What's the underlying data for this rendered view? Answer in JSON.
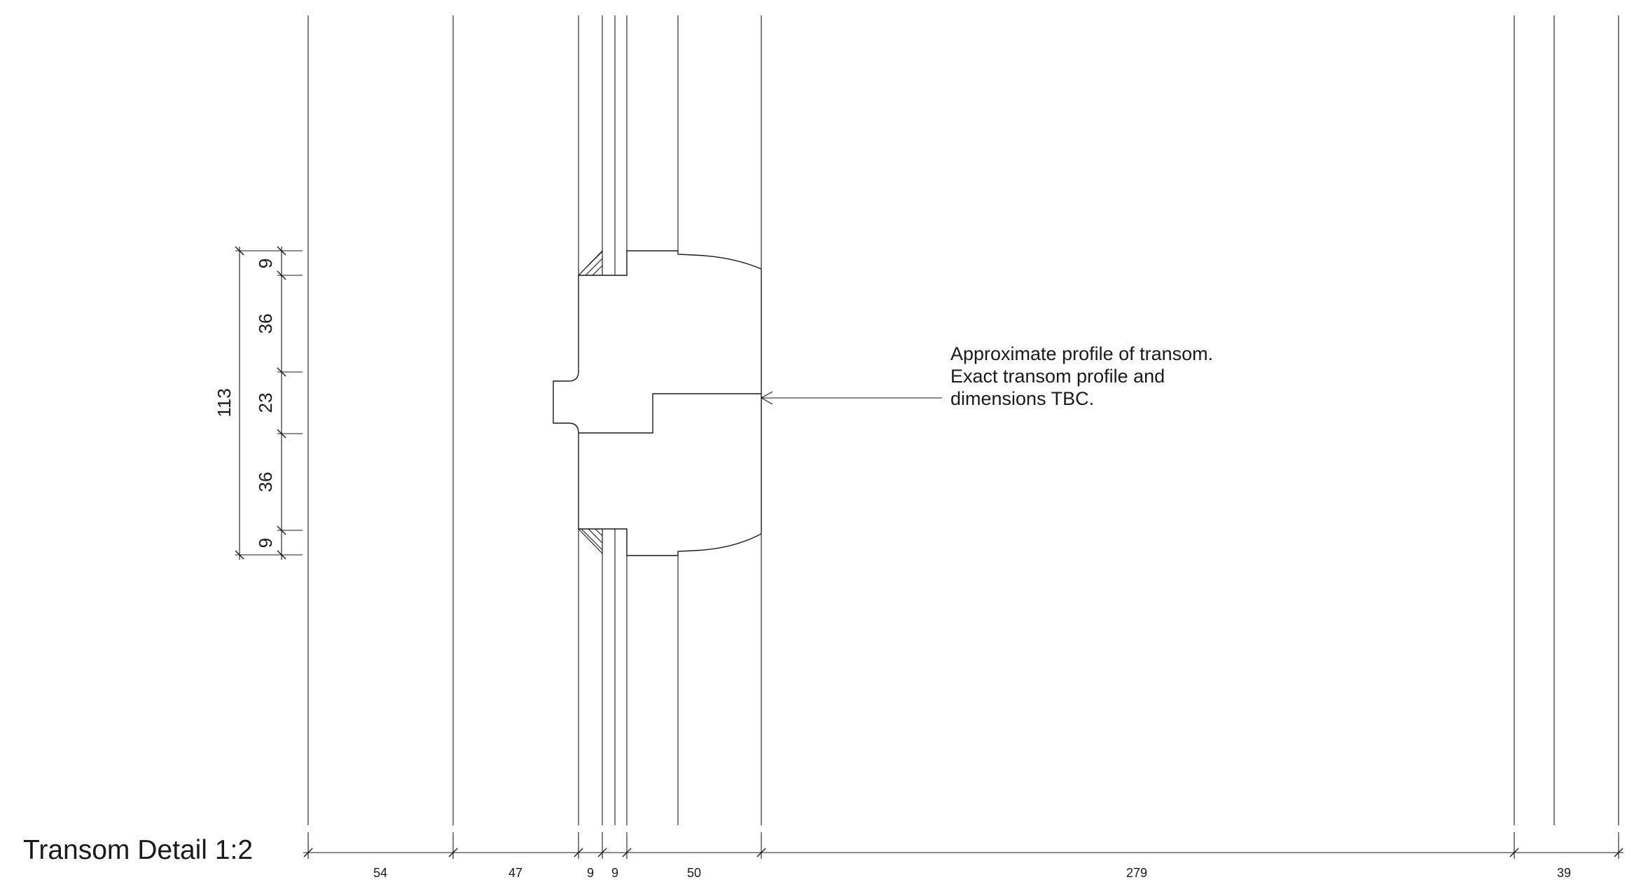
{
  "title": "Transom Detail 1:2",
  "annotation": {
    "lines": [
      "Approximate profile of transom.",
      "Exact transom profile and",
      "dimensions TBC."
    ]
  },
  "horizontal_dimensions": [
    "54",
    "47",
    "9",
    "9",
    "50",
    "279",
    "39"
  ],
  "vertical_dimensions": {
    "overall": "113",
    "segments": [
      "9",
      "36",
      "23",
      "36",
      "9"
    ]
  }
}
